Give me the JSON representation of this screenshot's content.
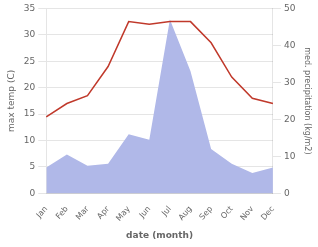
{
  "chart_data": {
    "type": "line",
    "categories": [
      "Jan",
      "Feb",
      "Mar",
      "Apr",
      "May",
      "Jun",
      "Jul",
      "Aug",
      "Sep",
      "Oct",
      "Nov",
      "Dec"
    ],
    "xlabel": "date (month)",
    "ylabel": "max temp (C)",
    "y2label": "med. precipitation (kg/m2)",
    "series": [
      {
        "type": "area",
        "color": "#b0b8e8",
        "axis": "y2",
        "values": [
          7.0,
          10.5,
          7.5,
          8.0,
          16.0,
          14.5,
          47.0,
          33.0,
          12.0,
          8.0,
          5.5,
          7.0
        ]
      },
      {
        "type": "line",
        "color": "#c0392b",
        "values": [
          14.5,
          17.0,
          18.5,
          24.0,
          32.5,
          32.0,
          32.5,
          32.5,
          28.5,
          22.0,
          18.0,
          17.0
        ]
      }
    ],
    "ylim": [
      0,
      35
    ],
    "yticks": [
      0,
      5,
      10,
      15,
      20,
      25,
      30,
      35
    ],
    "y2lim": [
      0,
      50
    ],
    "y2ticks": [
      0,
      10,
      20,
      30,
      40,
      50
    ],
    "grid": true
  }
}
